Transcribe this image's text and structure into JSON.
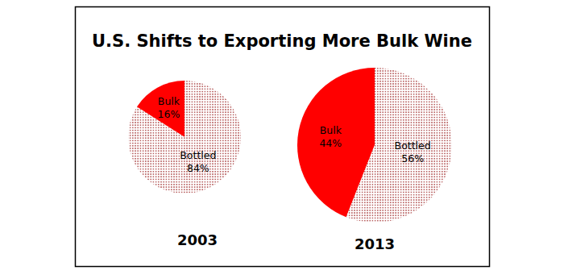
{
  "title": "U.S. Shifts to Exporting More Bulk Wine",
  "chart_data": [
    {
      "type": "pie",
      "title": "2003",
      "categories": [
        "Bulk",
        "Bottled"
      ],
      "values": [
        16,
        84
      ],
      "value_labels": [
        "16%",
        "84%"
      ],
      "colors": [
        "#ff0000",
        "#a83c3c"
      ],
      "data_labels": true
    },
    {
      "type": "pie",
      "title": "2013",
      "categories": [
        "Bulk",
        "Bottled"
      ],
      "values": [
        44,
        56
      ],
      "value_labels": [
        "44%",
        "56%"
      ],
      "colors": [
        "#ff0000",
        "#a83c3c"
      ],
      "data_labels": true
    }
  ]
}
